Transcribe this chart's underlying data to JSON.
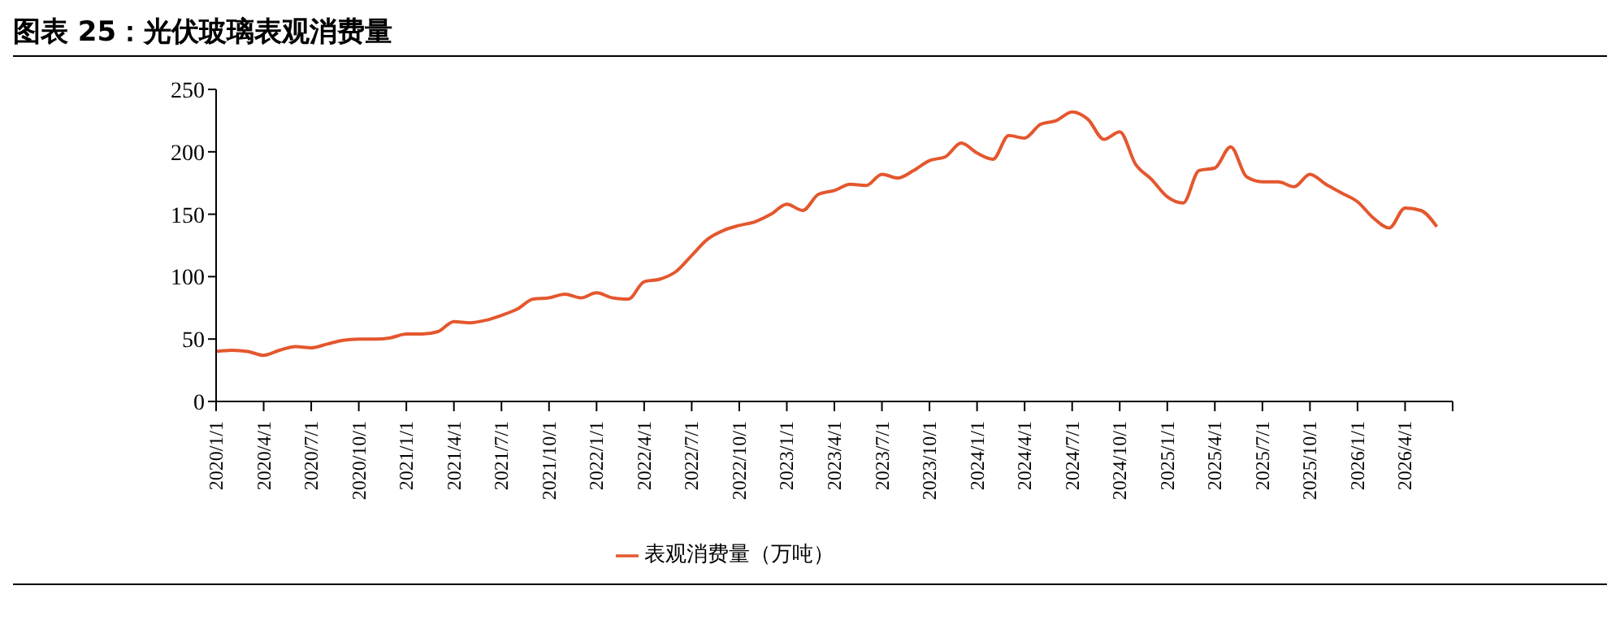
{
  "chart_data": {
    "type": "line",
    "title": "图表 25：光伏玻璃表观消费量",
    "x": [
      "2020-01",
      "2020-02",
      "2020-03",
      "2020-04",
      "2020-05",
      "2020-06",
      "2020-07",
      "2020-08",
      "2020-09",
      "2020-10",
      "2020-11",
      "2020-12",
      "2021-01",
      "2021-02",
      "2021-03",
      "2021-04",
      "2021-05",
      "2021-06",
      "2021-07",
      "2021-08",
      "2021-09",
      "2021-10",
      "2021-11",
      "2021-12",
      "2022-01",
      "2022-02",
      "2022-03",
      "2022-04",
      "2022-05",
      "2022-06",
      "2022-07",
      "2022-08",
      "2022-09",
      "2022-10",
      "2022-11",
      "2022-12",
      "2023-01",
      "2023-02",
      "2023-03",
      "2023-04",
      "2023-05",
      "2023-06",
      "2023-07",
      "2023-08",
      "2023-09",
      "2023-10",
      "2023-11",
      "2023-12",
      "2024-01",
      "2024-02",
      "2024-03",
      "2024-04",
      "2024-05",
      "2024-06",
      "2024-07",
      "2024-08",
      "2024-09",
      "2024-10",
      "2024-11",
      "2024-12",
      "2025-01",
      "2025-02",
      "2025-03",
      "2025-04",
      "2025-05",
      "2025-06",
      "2025-07",
      "2025-08",
      "2025-09",
      "2025-10",
      "2025-11",
      "2025-12",
      "2026-01",
      "2026-02",
      "2026-03",
      "2026-04",
      "2026-05",
      "2026-06"
    ],
    "series": [
      {
        "name": "表观消费量（万吨）",
        "color": "#e4572e",
        "values": [
          40,
          41,
          40,
          37,
          41,
          44,
          43,
          46,
          49,
          50,
          50,
          51,
          54,
          54,
          56,
          64,
          63,
          65,
          69,
          74,
          82,
          83,
          86,
          83,
          87,
          83,
          82,
          96,
          98,
          104,
          117,
          130,
          137,
          141,
          144,
          150,
          158,
          153,
          166,
          169,
          174,
          173,
          182,
          179,
          185,
          193,
          196,
          207,
          199,
          194,
          213,
          211,
          222,
          225,
          232,
          226,
          210,
          216,
          190,
          178,
          164,
          159,
          185,
          187,
          204,
          180,
          176,
          176,
          172,
          182,
          174,
          167,
          160,
          147,
          139,
          155,
          153,
          140
        ]
      }
    ],
    "xlim": [
      "2020-01-01",
      "2026-07-01"
    ],
    "xticks": [
      {
        "value": "2020-01-01",
        "label": "2020/1/1"
      },
      {
        "value": "2020-04-01",
        "label": "2020/4/1"
      },
      {
        "value": "2020-07-01",
        "label": "2020/7/1"
      },
      {
        "value": "2020-10-01",
        "label": "2020/10/1"
      },
      {
        "value": "2021-01-01",
        "label": "2021/1/1"
      },
      {
        "value": "2021-04-01",
        "label": "2021/4/1"
      },
      {
        "value": "2021-07-01",
        "label": "2021/7/1"
      },
      {
        "value": "2021-10-01",
        "label": "2021/10/1"
      },
      {
        "value": "2022-01-01",
        "label": "2022/1/1"
      },
      {
        "value": "2022-04-01",
        "label": "2022/4/1"
      },
      {
        "value": "2022-07-01",
        "label": "2022/7/1"
      },
      {
        "value": "2022-10-01",
        "label": "2022/10/1"
      },
      {
        "value": "2023-01-01",
        "label": "2023/1/1"
      },
      {
        "value": "2023-04-01",
        "label": "2023/4/1"
      },
      {
        "value": "2023-07-01",
        "label": "2023/7/1"
      },
      {
        "value": "2023-10-01",
        "label": "2023/10/1"
      },
      {
        "value": "2024-01-01",
        "label": "2024/1/1"
      },
      {
        "value": "2024-04-01",
        "label": "2024/4/1"
      },
      {
        "value": "2024-07-01",
        "label": "2024/7/1"
      },
      {
        "value": "2024-10-01",
        "label": "2024/10/1"
      },
      {
        "value": "2025-01-01",
        "label": "2025/1/1"
      },
      {
        "value": "2025-04-01",
        "label": "2025/4/1"
      },
      {
        "value": "2025-07-01",
        "label": "2025/7/1"
      },
      {
        "value": "2025-10-01",
        "label": "2025/10/1"
      },
      {
        "value": "2026-01-01",
        "label": "2026/1/1"
      },
      {
        "value": "2026-04-01",
        "label": "2026/4/1"
      },
      {
        "value": "2026-07-01",
        "label": null
      }
    ],
    "ylim": [
      0,
      250
    ],
    "yticks": [
      0,
      50,
      100,
      150,
      200,
      250
    ],
    "grid": false,
    "legend": "bottom",
    "marker": "none",
    "line_style": "solid"
  }
}
